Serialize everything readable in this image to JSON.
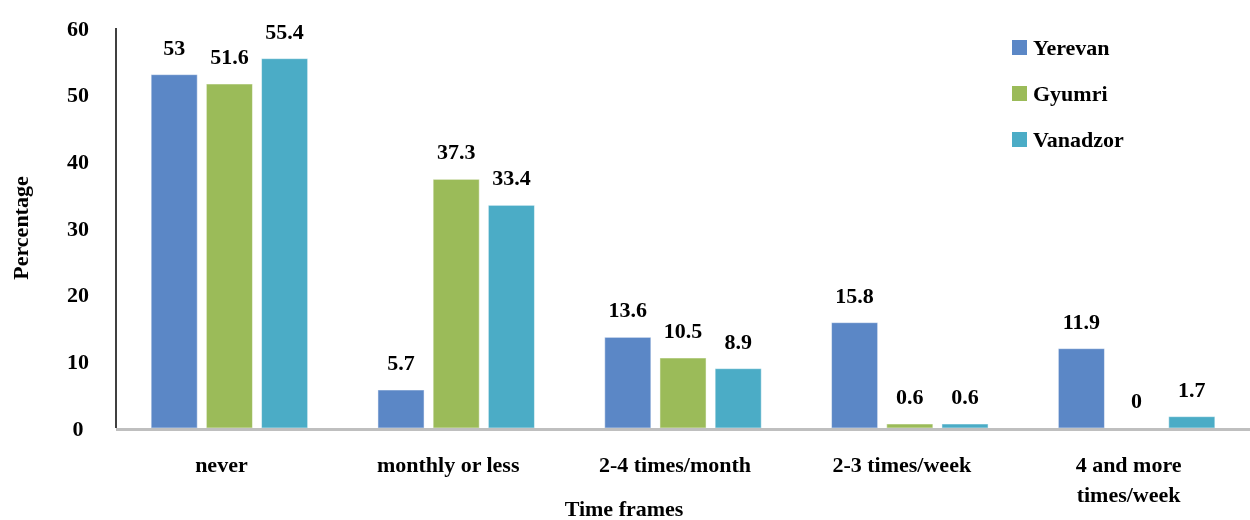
{
  "chart_data": {
    "type": "bar",
    "xlabel": "Time frames",
    "ylabel": "Percentage",
    "categories": [
      "never",
      "monthly or less",
      "2-4 times/month",
      "2-3 times/week",
      "4 and more times/week"
    ],
    "series": [
      {
        "name": "Yerevan",
        "color": "#5b87c6",
        "values": [
          53,
          5.7,
          13.6,
          15.8,
          11.9
        ]
      },
      {
        "name": "Gyumri",
        "color": "#9bbb59",
        "values": [
          51.6,
          37.3,
          10.5,
          0.6,
          0
        ]
      },
      {
        "name": "Vanadzor",
        "color": "#4bacc6",
        "values": [
          55.4,
          33.4,
          8.9,
          0.6,
          1.7
        ]
      }
    ],
    "ylim": [
      0,
      60
    ],
    "yticks": [
      0,
      10,
      20,
      30,
      40,
      50,
      60
    ],
    "data_labels": true,
    "legend": "top right",
    "grid": false
  }
}
